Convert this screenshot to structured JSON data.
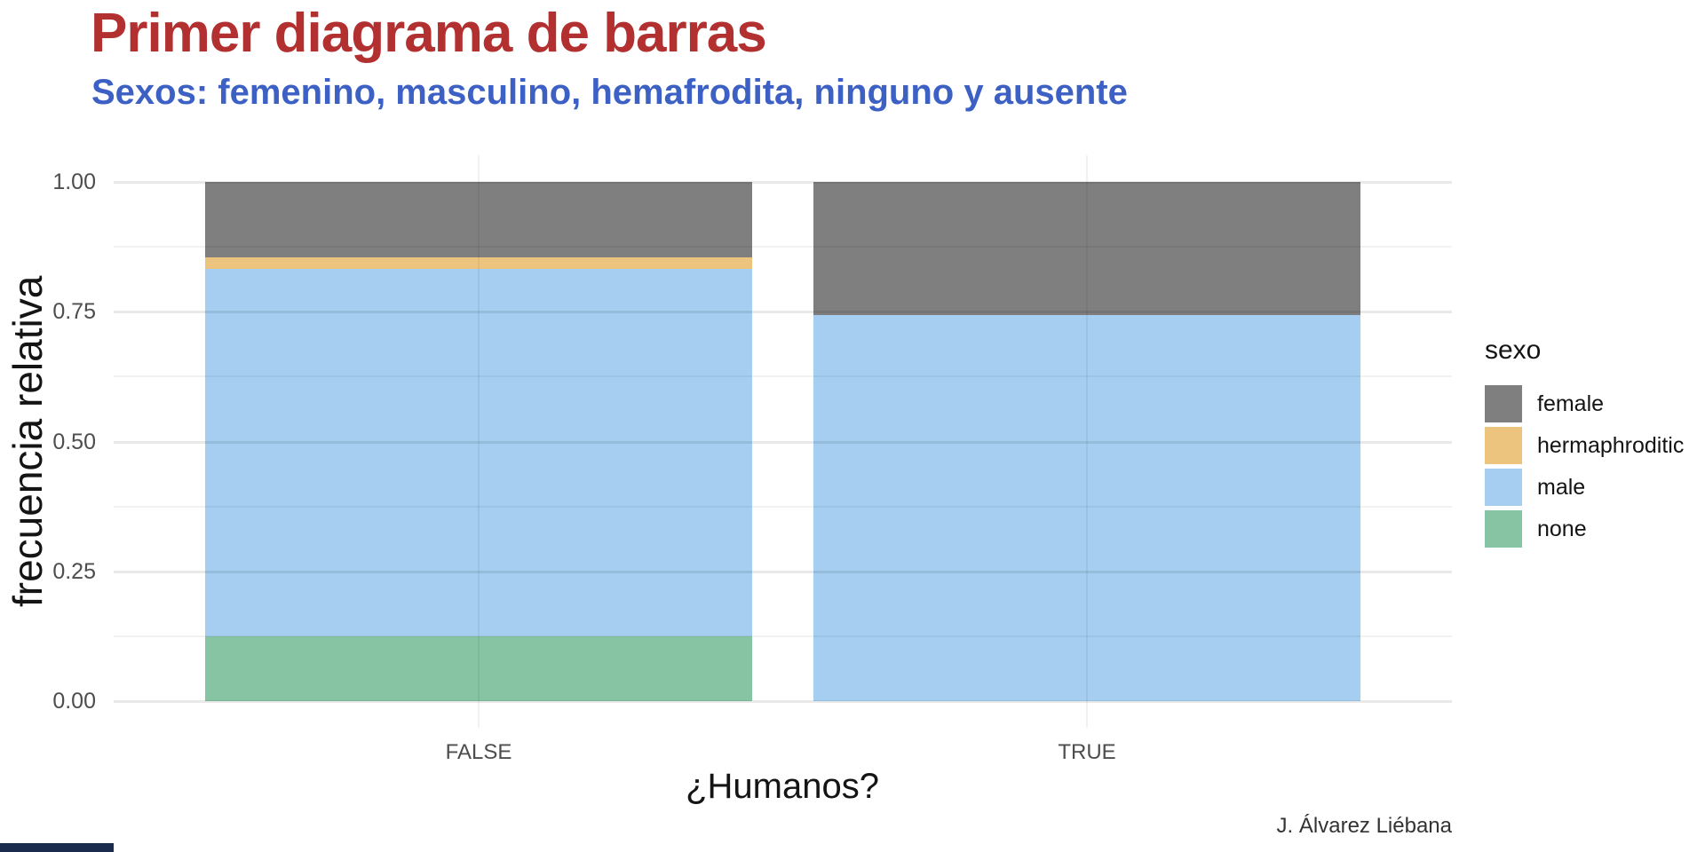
{
  "slide": {
    "caption": "J. Álvarez Liébana",
    "title_color": "#b23030",
    "subtitle_color": "#3c60c4",
    "progress_bar_color": "#1b2b4d"
  },
  "chart_data": {
    "type": "bar",
    "subtype": "stacked-filled-proportions",
    "title": "Primer diagrama de barras",
    "subtitle": "Sexos: femenino, masculino, hemafrodita, ninguno y ausente",
    "xlabel": "¿Humanos?",
    "ylabel": "frecuencia relativa",
    "categories": [
      "FALSE",
      "TRUE"
    ],
    "series": [
      {
        "name": "female",
        "color": "#7f7f7f",
        "values": [
          0.1458,
          0.2571
        ]
      },
      {
        "name": "hermaphroditic",
        "color": "#edc47e",
        "values": [
          0.0208,
          0
        ]
      },
      {
        "name": "male",
        "color": "#a5cef0",
        "values": [
          0.7083,
          0.7429
        ]
      },
      {
        "name": "none",
        "color": "#87c4a4",
        "values": [
          0.125,
          0
        ]
      }
    ],
    "stack_order_bottom_to_top": [
      "none",
      "male",
      "hermaphroditic",
      "female"
    ],
    "ylim": [
      0,
      1
    ],
    "y_ticks": [
      {
        "label": "1.00",
        "value": 1
      },
      {
        "label": "0.75",
        "value": 0.75
      },
      {
        "label": "0.50",
        "value": 0.5
      },
      {
        "label": "0.25",
        "value": 0.25
      },
      {
        "label": "0.00",
        "value": 0
      }
    ],
    "y_minor_ticks": [
      0.875,
      0.625,
      0.375,
      0.125
    ],
    "grid": true,
    "legend": {
      "title": "sexo",
      "position": "right"
    }
  }
}
